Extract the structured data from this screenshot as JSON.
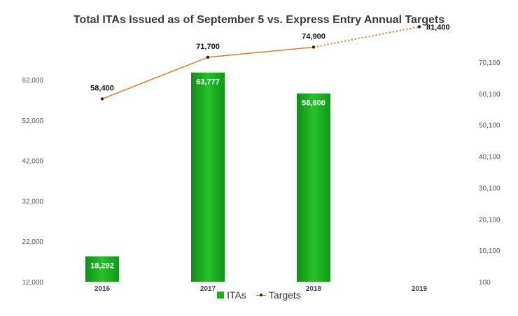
{
  "chart_data": {
    "type": "bar",
    "title": "Total ITAs Issued as of September 5 vs. Express Entry Annual Targets",
    "categories": [
      "2016",
      "2017",
      "2018",
      "2019"
    ],
    "series": [
      {
        "name": "ITAs",
        "type": "bar",
        "axis": "left",
        "values": [
          18292,
          63777,
          58600,
          null
        ],
        "labels": [
          "18,292",
          "63,777",
          "58,600",
          ""
        ]
      },
      {
        "name": "Targets",
        "type": "line",
        "axis": "right",
        "values": [
          58400,
          71700,
          74900,
          81400
        ],
        "labels": [
          "58,400",
          "71,700",
          "74,900",
          "81,400"
        ]
      }
    ],
    "left_axis": {
      "ylim": [
        12000,
        62000
      ],
      "ticks": [
        "12,000",
        "22,000",
        "32,000",
        "42,000",
        "52,000",
        "62,000"
      ]
    },
    "right_axis": {
      "ylim": [
        100,
        70100
      ],
      "ticks": [
        "100",
        "10,100",
        "20,100",
        "30,100",
        "40,100",
        "50,100",
        "60,100",
        "70,100"
      ]
    },
    "grid": false,
    "legend": "bottom",
    "colors": {
      "bar": "#1fae1f",
      "line": "#e07a2a",
      "marker": "#222222"
    }
  }
}
